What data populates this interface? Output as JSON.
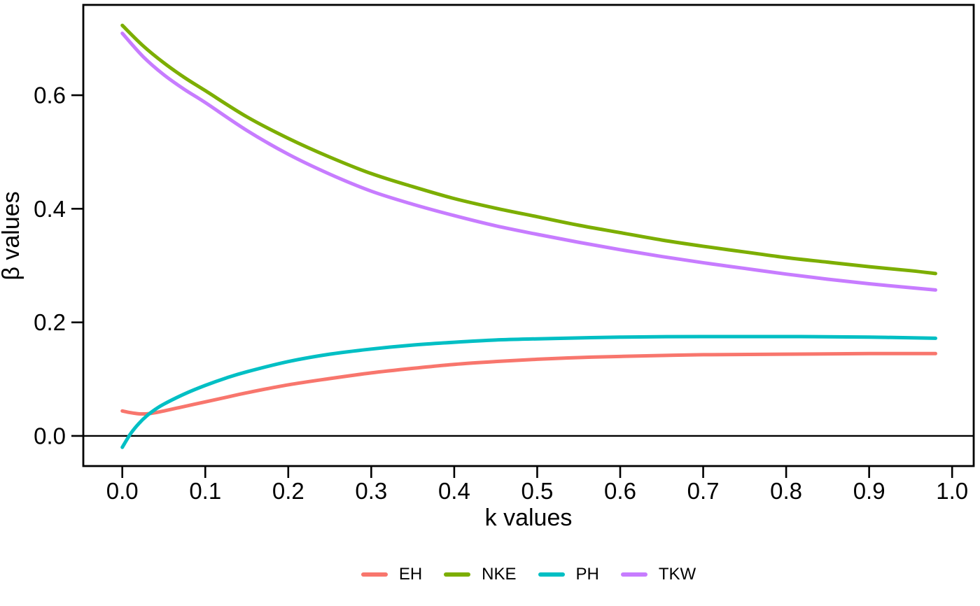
{
  "figure": {
    "background": "#ffffff",
    "text_color": "#000000"
  },
  "chart_data": {
    "type": "line",
    "title": "",
    "xlabel": "k values",
    "ylabel": "β values",
    "xlim": [
      -0.047,
      1.026
    ],
    "ylim": [
      -0.053,
      0.759
    ],
    "x_ticks": [
      "0.0",
      "0.1",
      "0.2",
      "0.3",
      "0.4",
      "0.5",
      "0.6",
      "0.7",
      "0.8",
      "0.9",
      "1.0"
    ],
    "y_ticks": [
      "0.0",
      "0.2",
      "0.4",
      "0.6"
    ],
    "grid": false,
    "panel_border_color": "#000000",
    "zero_line": {
      "y": 0.0,
      "color": "#000000"
    },
    "legend_position": "bottom",
    "series": [
      {
        "name": "EH",
        "color": "#F8766D",
        "points": [
          [
            0,
            0.044
          ],
          [
            0.01,
            0.041
          ],
          [
            0.02,
            0.039
          ],
          [
            0.03,
            0.039
          ],
          [
            0.04,
            0.041
          ],
          [
            0.05,
            0.044
          ],
          [
            0.075,
            0.052
          ],
          [
            0.1,
            0.06
          ],
          [
            0.125,
            0.068
          ],
          [
            0.15,
            0.076
          ],
          [
            0.2,
            0.09
          ],
          [
            0.25,
            0.101
          ],
          [
            0.3,
            0.111
          ],
          [
            0.35,
            0.119
          ],
          [
            0.4,
            0.126
          ],
          [
            0.45,
            0.131
          ],
          [
            0.5,
            0.135
          ],
          [
            0.55,
            0.138
          ],
          [
            0.6,
            0.14
          ],
          [
            0.7,
            0.143
          ],
          [
            0.8,
            0.144
          ],
          [
            0.9,
            0.145
          ],
          [
            0.98,
            0.145
          ]
        ]
      },
      {
        "name": "NKE",
        "color": "#7CAE00",
        "points": [
          [
            0,
            0.723
          ],
          [
            0.025,
            0.687
          ],
          [
            0.05,
            0.657
          ],
          [
            0.075,
            0.631
          ],
          [
            0.1,
            0.608
          ],
          [
            0.15,
            0.562
          ],
          [
            0.2,
            0.524
          ],
          [
            0.25,
            0.491
          ],
          [
            0.3,
            0.462
          ],
          [
            0.35,
            0.439
          ],
          [
            0.4,
            0.418
          ],
          [
            0.45,
            0.401
          ],
          [
            0.5,
            0.386
          ],
          [
            0.55,
            0.371
          ],
          [
            0.6,
            0.358
          ],
          [
            0.65,
            0.345
          ],
          [
            0.7,
            0.334
          ],
          [
            0.75,
            0.324
          ],
          [
            0.8,
            0.314
          ],
          [
            0.85,
            0.306
          ],
          [
            0.9,
            0.298
          ],
          [
            0.95,
            0.291
          ],
          [
            0.98,
            0.286
          ]
        ]
      },
      {
        "name": "PH",
        "color": "#00BFC4",
        "points": [
          [
            0,
            -0.02
          ],
          [
            0.01,
            0.004
          ],
          [
            0.02,
            0.022
          ],
          [
            0.03,
            0.036
          ],
          [
            0.04,
            0.047
          ],
          [
            0.05,
            0.056
          ],
          [
            0.075,
            0.074
          ],
          [
            0.1,
            0.089
          ],
          [
            0.125,
            0.102
          ],
          [
            0.15,
            0.113
          ],
          [
            0.2,
            0.131
          ],
          [
            0.25,
            0.144
          ],
          [
            0.3,
            0.153
          ],
          [
            0.35,
            0.16
          ],
          [
            0.4,
            0.165
          ],
          [
            0.45,
            0.169
          ],
          [
            0.5,
            0.171
          ],
          [
            0.6,
            0.174
          ],
          [
            0.7,
            0.175
          ],
          [
            0.8,
            0.175
          ],
          [
            0.9,
            0.174
          ],
          [
            0.98,
            0.172
          ]
        ]
      },
      {
        "name": "TKW",
        "color": "#C77CFF",
        "points": [
          [
            0,
            0.709
          ],
          [
            0.025,
            0.668
          ],
          [
            0.05,
            0.636
          ],
          [
            0.075,
            0.61
          ],
          [
            0.1,
            0.587
          ],
          [
            0.15,
            0.538
          ],
          [
            0.2,
            0.496
          ],
          [
            0.25,
            0.461
          ],
          [
            0.3,
            0.431
          ],
          [
            0.35,
            0.408
          ],
          [
            0.4,
            0.388
          ],
          [
            0.45,
            0.37
          ],
          [
            0.5,
            0.355
          ],
          [
            0.55,
            0.341
          ],
          [
            0.6,
            0.328
          ],
          [
            0.65,
            0.316
          ],
          [
            0.7,
            0.305
          ],
          [
            0.75,
            0.295
          ],
          [
            0.8,
            0.285
          ],
          [
            0.85,
            0.276
          ],
          [
            0.9,
            0.268
          ],
          [
            0.95,
            0.261
          ],
          [
            0.98,
            0.257
          ]
        ]
      }
    ]
  }
}
